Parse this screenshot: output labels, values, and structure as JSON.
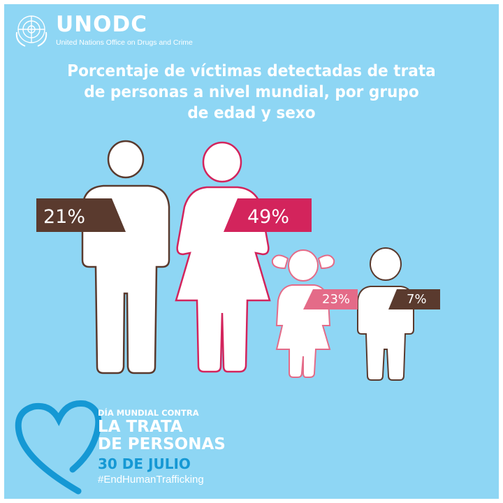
{
  "colors": {
    "frame": "#ffffff",
    "background": "#8ed6f4",
    "brown": "#5a3a2e",
    "magenta": "#d3245c",
    "pink": "#e46b88",
    "campaign_blue": "#1598d4",
    "figure_fill": "#ffffff"
  },
  "header": {
    "logo_icon": "un-emblem-icon",
    "org_short": "UNODC",
    "org_full": "United Nations Office on Drugs and Crime"
  },
  "title": {
    "line1": "Porcentaje de víctimas detectadas de trata",
    "line2": "de personas a nivel mundial, por grupo",
    "line3": "de edad y sexo"
  },
  "chart_data": {
    "type": "pictograph",
    "title": "Porcentaje de víctimas detectadas de trata de personas a nivel mundial, por grupo de edad y sexo",
    "unit": "%",
    "values": [
      21,
      49,
      23,
      7
    ],
    "labels": [
      "21%",
      "49%",
      "23%",
      "7%"
    ],
    "icons": [
      "man-icon",
      "woman-icon",
      "girl-icon",
      "boy-icon"
    ],
    "colors": [
      "#5a3a2e",
      "#d3245c",
      "#e46b88",
      "#5a3a2e"
    ]
  },
  "campaign": {
    "line1": "DÍA MUNDIAL CONTRA",
    "line2": "LA TRATA",
    "line3": "DE PERSONAS",
    "date": "30 DE JULIO",
    "hashtag": "#EndHumanTrafficking",
    "icon": "heart-icon"
  }
}
